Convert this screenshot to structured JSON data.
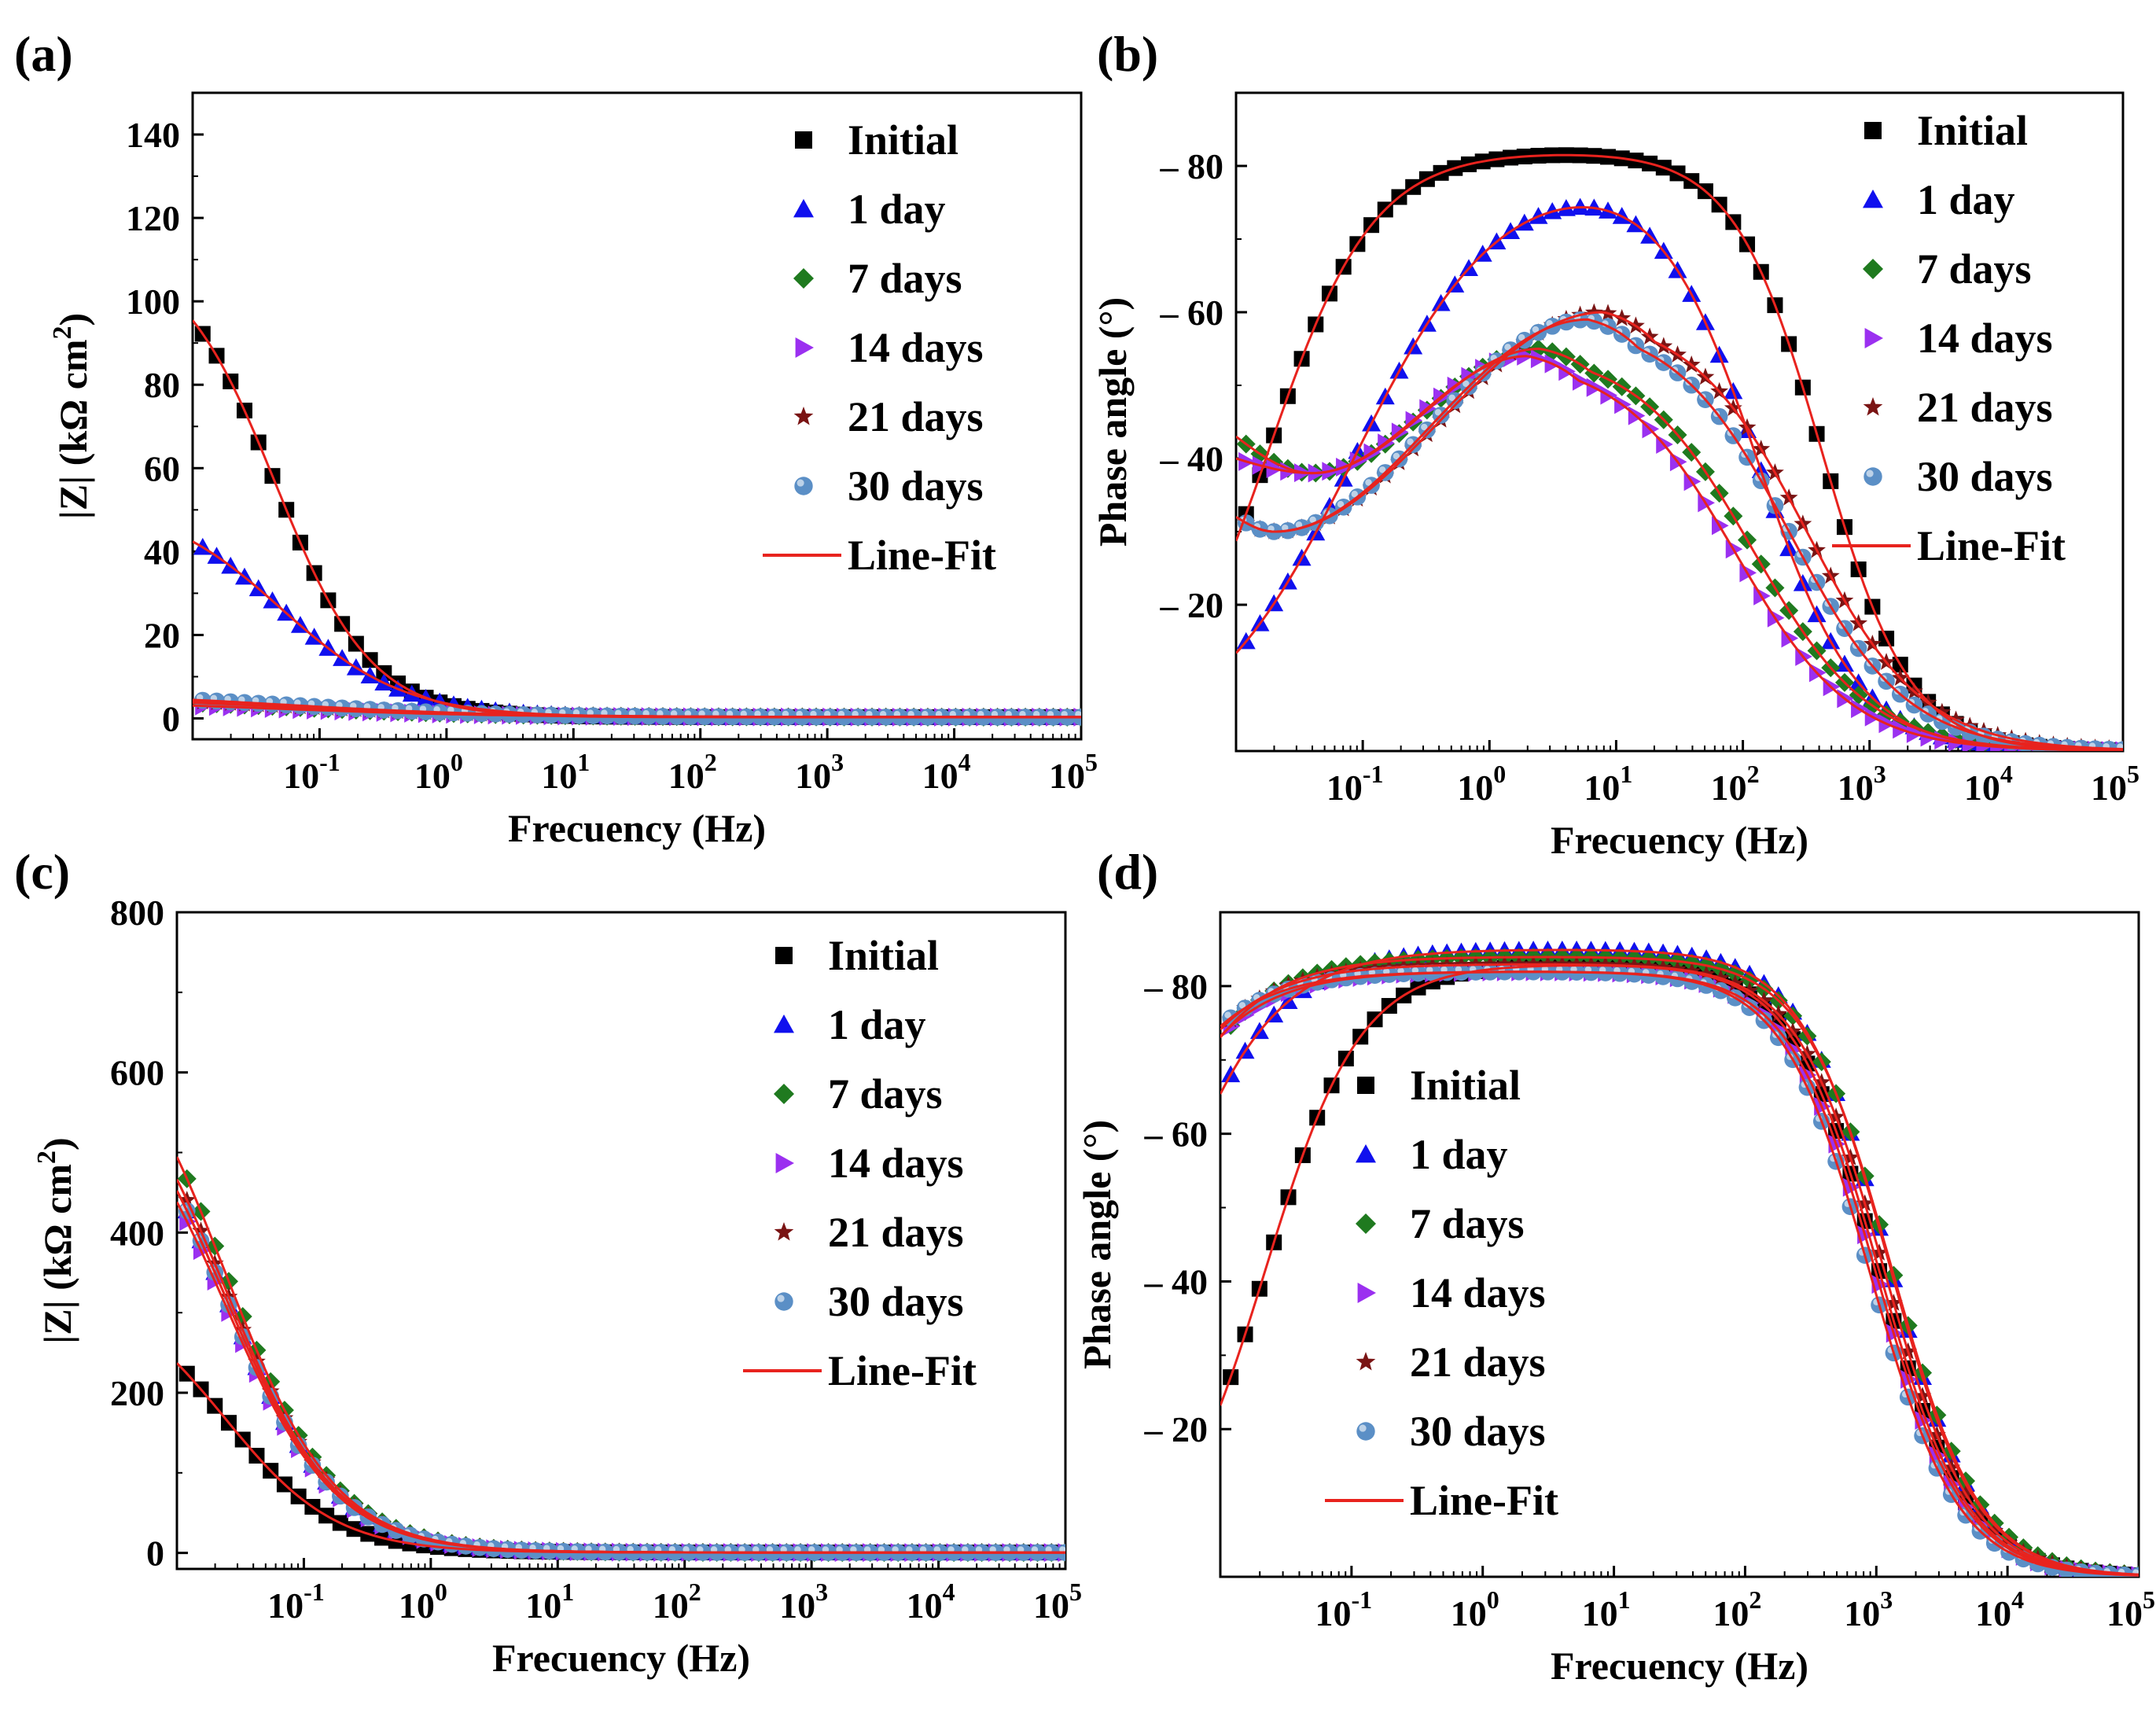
{
  "figure": {
    "colors": {
      "Initial": "#000000",
      "1 day": "#1010ee",
      "7 days": "#1f7a1f",
      "14 days": "#9b30f0",
      "21 days": "#7a1414",
      "30 days": "#5b8fc6",
      "Line-Fit": "#e8231e"
    },
    "markers": {
      "Initial": "square",
      "1 day": "triangle-up",
      "7 days": "diamond",
      "14 days": "triangle-right",
      "21 days": "star",
      "30 days": "sphere"
    }
  },
  "chart_data": [
    {
      "id": "a",
      "panel_label": "(a)",
      "type": "scatter",
      "xscale": "log",
      "xlabel": "Frecuency (Hz)",
      "ylabel": "|Z| (kΩ cm²)",
      "ylabel_parts": {
        "main": "|Z| (kΩ cm",
        "sup": "2",
        "end": ")"
      },
      "xlim": [
        0.01,
        100000
      ],
      "ylim": [
        -5,
        150
      ],
      "yticks": [
        0,
        20,
        40,
        60,
        80,
        100,
        120,
        140
      ],
      "ytick_labels": [
        "0",
        "20",
        "40",
        "60",
        "80",
        "100",
        "120",
        "140"
      ],
      "xticks": [
        0.1,
        1,
        10,
        100,
        1000,
        10000,
        100000
      ],
      "xtick_labels": [
        {
          "base": "10",
          "exp": "-1"
        },
        {
          "base": "10",
          "exp": "0"
        },
        {
          "base": "10",
          "exp": "1"
        },
        {
          "base": "10",
          "exp": "2"
        },
        {
          "base": "10",
          "exp": "3"
        },
        {
          "base": "10",
          "exp": "4"
        },
        {
          "base": "10",
          "exp": "5"
        }
      ],
      "legend_position": "top-right",
      "legend": [
        "Initial",
        "1 day",
        "7 days",
        "14 days",
        "21 days",
        "30 days",
        "Line-Fit"
      ],
      "series": [
        {
          "name": "Initial",
          "model": "bode_mag",
          "R": 112,
          "f0": 0.045,
          "n": 1.15,
          "rs": 0.3
        },
        {
          "name": "1 day",
          "model": "bode_mag",
          "R": 52,
          "f0": 0.05,
          "n": 0.9,
          "rs": 0.3
        },
        {
          "name": "7 days",
          "model": "bode_mag",
          "R": 5,
          "f0": 0.05,
          "n": 0.5,
          "rs": 0.3
        },
        {
          "name": "14 days",
          "model": "bode_mag",
          "R": 4,
          "f0": 0.05,
          "n": 0.5,
          "rs": 0.3
        },
        {
          "name": "21 days",
          "model": "bode_mag",
          "R": 5.5,
          "f0": 0.05,
          "n": 0.5,
          "rs": 0.3
        },
        {
          "name": "30 days",
          "model": "bode_mag",
          "R": 6,
          "f0": 0.05,
          "n": 0.5,
          "rs": 0.3
        }
      ]
    },
    {
      "id": "b",
      "panel_label": "(b)",
      "type": "scatter",
      "xscale": "log",
      "xlabel": "Frecuency (Hz)",
      "ylabel": "Phase angle (°)",
      "xlim": [
        0.01,
        100000
      ],
      "ylim": [
        0,
        90
      ],
      "yticks": [
        20,
        40,
        60,
        80
      ],
      "ytick_labels": [
        "– 20",
        "– 40",
        "– 60",
        "– 80"
      ],
      "xticks": [
        0.1,
        1,
        10,
        100,
        1000,
        10000,
        100000
      ],
      "xtick_labels": [
        {
          "base": "10",
          "exp": "-1"
        },
        {
          "base": "10",
          "exp": "0"
        },
        {
          "base": "10",
          "exp": "1"
        },
        {
          "base": "10",
          "exp": "2"
        },
        {
          "base": "10",
          "exp": "3"
        },
        {
          "base": "10",
          "exp": "4"
        },
        {
          "base": "10",
          "exp": "5"
        }
      ],
      "legend_position": "top-right",
      "legend": [
        "Initial",
        "1 day",
        "7 days",
        "14 days",
        "21 days",
        "30 days",
        "Line-Fit"
      ],
      "series": [
        {
          "name": "Initial",
          "model": "phase",
          "plateau": 82,
          "flo": 0.018,
          "nlo": 1.05,
          "fhi": 420,
          "nhi": 1.25,
          "floor": 0
        },
        {
          "name": "1 day",
          "model": "phase",
          "plateau": 80,
          "flo": 0.085,
          "nlo": 0.75,
          "fhi": 130,
          "nhi": 1.1,
          "floor": 0
        },
        {
          "name": "7 days",
          "model": "phase_dip",
          "base": 38,
          "dipf": 0.04,
          "peak": 55,
          "peakf": 2.5,
          "fhi": 30,
          "nhi": 0.95,
          "start": 43
        },
        {
          "name": "14 days",
          "model": "phase_dip",
          "base": 38,
          "dipf": 0.04,
          "peak": 54,
          "peakf": 2.0,
          "fhi": 22,
          "nhi": 0.95,
          "start": 40
        },
        {
          "name": "21 days",
          "model": "phase_dip",
          "base": 30,
          "dipf": 0.02,
          "peak": 60,
          "peakf": 8,
          "fhi": 80,
          "nhi": 0.95,
          "start": 32
        },
        {
          "name": "30 days",
          "model": "phase_dip",
          "base": 30,
          "dipf": 0.02,
          "peak": 59,
          "peakf": 6,
          "fhi": 60,
          "nhi": 0.95,
          "start": 32
        }
      ]
    },
    {
      "id": "c",
      "panel_label": "(c)",
      "type": "scatter",
      "xscale": "log",
      "xlabel": "Frecuency (Hz)",
      "ylabel": "|Z| (kΩ cm²)",
      "ylabel_parts": {
        "main": "|Z| (kΩ cm",
        "sup": "2",
        "end": ")"
      },
      "xlim": [
        0.01,
        100000
      ],
      "ylim": [
        -20,
        800
      ],
      "yticks": [
        0,
        200,
        400,
        600,
        800
      ],
      "ytick_labels": [
        "0",
        "200",
        "400",
        "600",
        "800"
      ],
      "xticks": [
        0.1,
        1,
        10,
        100,
        1000,
        10000,
        100000
      ],
      "xtick_labels": [
        {
          "base": "10",
          "exp": "-1"
        },
        {
          "base": "10",
          "exp": "0"
        },
        {
          "base": "10",
          "exp": "1"
        },
        {
          "base": "10",
          "exp": "2"
        },
        {
          "base": "10",
          "exp": "3"
        },
        {
          "base": "10",
          "exp": "4"
        },
        {
          "base": "10",
          "exp": "5"
        }
      ],
      "legend_position": "top-right",
      "legend": [
        "Initial",
        "1 day",
        "7 days",
        "14 days",
        "21 days",
        "30 days",
        "Line-Fit"
      ],
      "series": [
        {
          "name": "Initial",
          "model": "bode_mag",
          "R": 335,
          "f0": 0.024,
          "n": 1.0,
          "rs": 0.5
        },
        {
          "name": "1 day",
          "model": "bode_mag",
          "R": 640,
          "f0": 0.024,
          "n": 1.0,
          "rs": 0.5
        },
        {
          "name": "7 days",
          "model": "bode_mag",
          "R": 700,
          "f0": 0.024,
          "n": 1.0,
          "rs": 0.5
        },
        {
          "name": "14 days",
          "model": "bode_mag",
          "R": 620,
          "f0": 0.024,
          "n": 1.0,
          "rs": 0.5
        },
        {
          "name": "21 days",
          "model": "bode_mag",
          "R": 660,
          "f0": 0.024,
          "n": 1.0,
          "rs": 0.5
        },
        {
          "name": "30 days",
          "model": "bode_mag",
          "R": 640,
          "f0": 0.024,
          "n": 1.0,
          "rs": 0.5
        }
      ]
    },
    {
      "id": "d",
      "panel_label": "(d)",
      "type": "scatter",
      "xscale": "log",
      "xlabel": "Frecuency (Hz)",
      "ylabel": "Phase angle (°)",
      "xlim": [
        0.01,
        100000
      ],
      "ylim": [
        0,
        90
      ],
      "yticks": [
        20,
        40,
        60,
        80
      ],
      "ytick_labels": [
        "– 20",
        "– 40",
        "– 60",
        "– 80"
      ],
      "xticks": [
        0.1,
        1,
        10,
        100,
        1000,
        10000,
        100000
      ],
      "xtick_labels": [
        {
          "base": "10",
          "exp": "-1"
        },
        {
          "base": "10",
          "exp": "0"
        },
        {
          "base": "10",
          "exp": "1"
        },
        {
          "base": "10",
          "exp": "2"
        },
        {
          "base": "10",
          "exp": "3"
        },
        {
          "base": "10",
          "exp": "4"
        },
        {
          "base": "10",
          "exp": "5"
        }
      ],
      "legend_position": "center-left",
      "legend": [
        "Initial",
        "1 day",
        "7 days",
        "14 days",
        "21 days",
        "30 days",
        "Line-Fit"
      ],
      "series": [
        {
          "name": "Initial",
          "model": "phase",
          "plateau": 83,
          "flo": 0.022,
          "nlo": 1.2,
          "fhi": 1050,
          "nhi": 1.3,
          "floor": 0
        },
        {
          "name": "1 day",
          "model": "phase",
          "plateau": 85,
          "flo": 0.003,
          "nlo": 1.0,
          "fhi": 1250,
          "nhi": 1.3,
          "floor": 0
        },
        {
          "name": "7 days",
          "model": "phase",
          "plateau": 84,
          "flo": 0.0015,
          "nlo": 1.0,
          "fhi": 1300,
          "nhi": 1.3,
          "floor": 0
        },
        {
          "name": "14 days",
          "model": "phase",
          "plateau": 82,
          "flo": 0.0012,
          "nlo": 1.0,
          "fhi": 1000,
          "nhi": 1.3,
          "floor": 0
        },
        {
          "name": "21 days",
          "model": "phase",
          "plateau": 83,
          "flo": 0.0012,
          "nlo": 1.0,
          "fhi": 1150,
          "nhi": 1.3,
          "floor": 0
        },
        {
          "name": "30 days",
          "model": "phase",
          "plateau": 82,
          "flo": 0.001,
          "nlo": 1.0,
          "fhi": 900,
          "nhi": 1.3,
          "floor": 0
        }
      ]
    }
  ]
}
